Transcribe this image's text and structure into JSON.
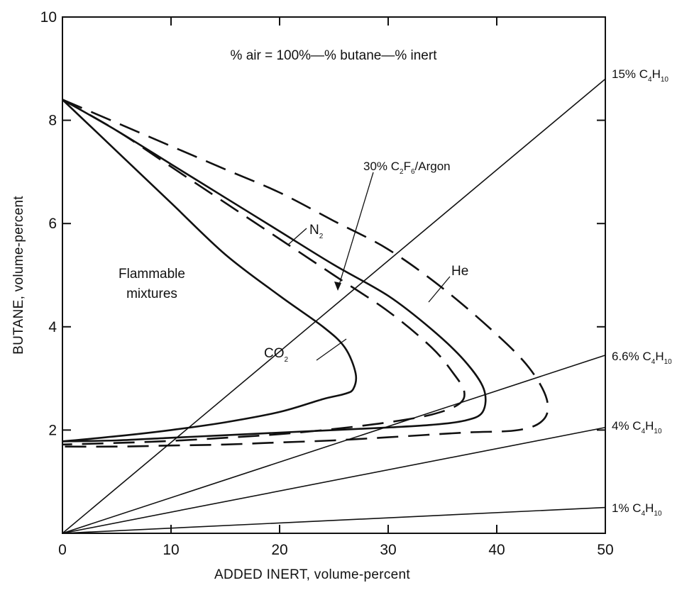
{
  "chart_data": {
    "type": "line",
    "title": "",
    "equation_note": "% air = 100%—% butane—% inert",
    "xlabel": "ADDED INERT, volume-percent",
    "ylabel": "BUTANE, volume-percent",
    "xlim": [
      0,
      50
    ],
    "ylim": [
      0,
      10
    ],
    "x_ticks": [
      0,
      10,
      20,
      30,
      40,
      50
    ],
    "y_ticks": [
      2,
      4,
      6,
      8,
      10
    ],
    "grid": false,
    "region_label_line1": "Flammable",
    "region_label_line2": "mixtures",
    "series": [
      {
        "name": "CO2",
        "label_main": "CO",
        "label_sub": "2",
        "style": "solid",
        "points": [
          [
            0,
            8.4
          ],
          [
            5,
            7.4
          ],
          [
            10,
            6.4
          ],
          [
            15,
            5.4
          ],
          [
            20,
            4.6
          ],
          [
            24,
            4.0
          ],
          [
            26,
            3.6
          ],
          [
            27,
            3.1
          ],
          [
            26.8,
            2.8
          ],
          [
            26,
            2.7
          ],
          [
            24,
            2.6
          ],
          [
            20,
            2.35
          ],
          [
            15,
            2.15
          ],
          [
            10,
            2.0
          ],
          [
            5,
            1.88
          ],
          [
            0,
            1.78
          ]
        ]
      },
      {
        "name": "N2",
        "label_main": "N",
        "label_sub": "2",
        "style": "dash",
        "points": [
          [
            0,
            8.4
          ],
          [
            5,
            7.8
          ],
          [
            10,
            7.1
          ],
          [
            15,
            6.4
          ],
          [
            20,
            5.7
          ],
          [
            25,
            5.0
          ],
          [
            30,
            4.3
          ],
          [
            34,
            3.6
          ],
          [
            36,
            3.1
          ],
          [
            37,
            2.75
          ],
          [
            36.5,
            2.5
          ],
          [
            34,
            2.3
          ],
          [
            30,
            2.15
          ],
          [
            25,
            2.02
          ],
          [
            20,
            1.92
          ],
          [
            15,
            1.85
          ],
          [
            10,
            1.79
          ],
          [
            5,
            1.75
          ],
          [
            0,
            1.72
          ]
        ]
      },
      {
        "name": "30% C2F6/Argon",
        "label_main": "30% C",
        "label_sub1": "2",
        "label_mid": "F",
        "label_sub2": "6",
        "label_tail": "/Argon",
        "style": "solid",
        "points": [
          [
            0,
            8.4
          ],
          [
            5,
            7.8
          ],
          [
            10,
            7.15
          ],
          [
            15,
            6.5
          ],
          [
            20,
            5.85
          ],
          [
            25,
            5.2
          ],
          [
            30,
            4.6
          ],
          [
            34,
            3.95
          ],
          [
            37,
            3.35
          ],
          [
            38.8,
            2.8
          ],
          [
            38.7,
            2.35
          ],
          [
            37,
            2.18
          ],
          [
            34,
            2.1
          ],
          [
            30,
            2.05
          ],
          [
            25,
            2.0
          ],
          [
            20,
            1.95
          ],
          [
            15,
            1.9
          ],
          [
            10,
            1.85
          ],
          [
            5,
            1.8
          ],
          [
            0,
            1.78
          ]
        ]
      },
      {
        "name": "He",
        "label_main": "He",
        "style": "dash",
        "points": [
          [
            0,
            8.4
          ],
          [
            5,
            7.95
          ],
          [
            10,
            7.5
          ],
          [
            15,
            7.05
          ],
          [
            20,
            6.6
          ],
          [
            25,
            6.05
          ],
          [
            30,
            5.5
          ],
          [
            35,
            4.75
          ],
          [
            40,
            3.85
          ],
          [
            43,
            3.2
          ],
          [
            44.6,
            2.6
          ],
          [
            44.3,
            2.2
          ],
          [
            42,
            2.0
          ],
          [
            37,
            1.95
          ],
          [
            30,
            1.86
          ],
          [
            25,
            1.8
          ],
          [
            20,
            1.76
          ],
          [
            15,
            1.72
          ],
          [
            10,
            1.7
          ],
          [
            5,
            1.68
          ],
          [
            0,
            1.68
          ]
        ]
      }
    ],
    "reference_lines": [
      {
        "main": "15% C",
        "sub1": "4",
        "mid": "H",
        "sub2": "10",
        "points": [
          [
            0,
            0
          ],
          [
            50,
            8.8
          ]
        ]
      },
      {
        "main": "6.6% C",
        "sub1": "4",
        "mid": "H",
        "sub2": "10",
        "points": [
          [
            0,
            0
          ],
          [
            50,
            3.45
          ]
        ]
      },
      {
        "main": "4% C",
        "sub1": "4",
        "mid": "H",
        "sub2": "10",
        "points": [
          [
            0,
            0
          ],
          [
            50,
            2.05
          ]
        ]
      },
      {
        "main": "1% C",
        "sub1": "4",
        "mid": "H",
        "sub2": "10",
        "points": [
          [
            0,
            0
          ],
          [
            50,
            0.5
          ]
        ]
      }
    ]
  }
}
